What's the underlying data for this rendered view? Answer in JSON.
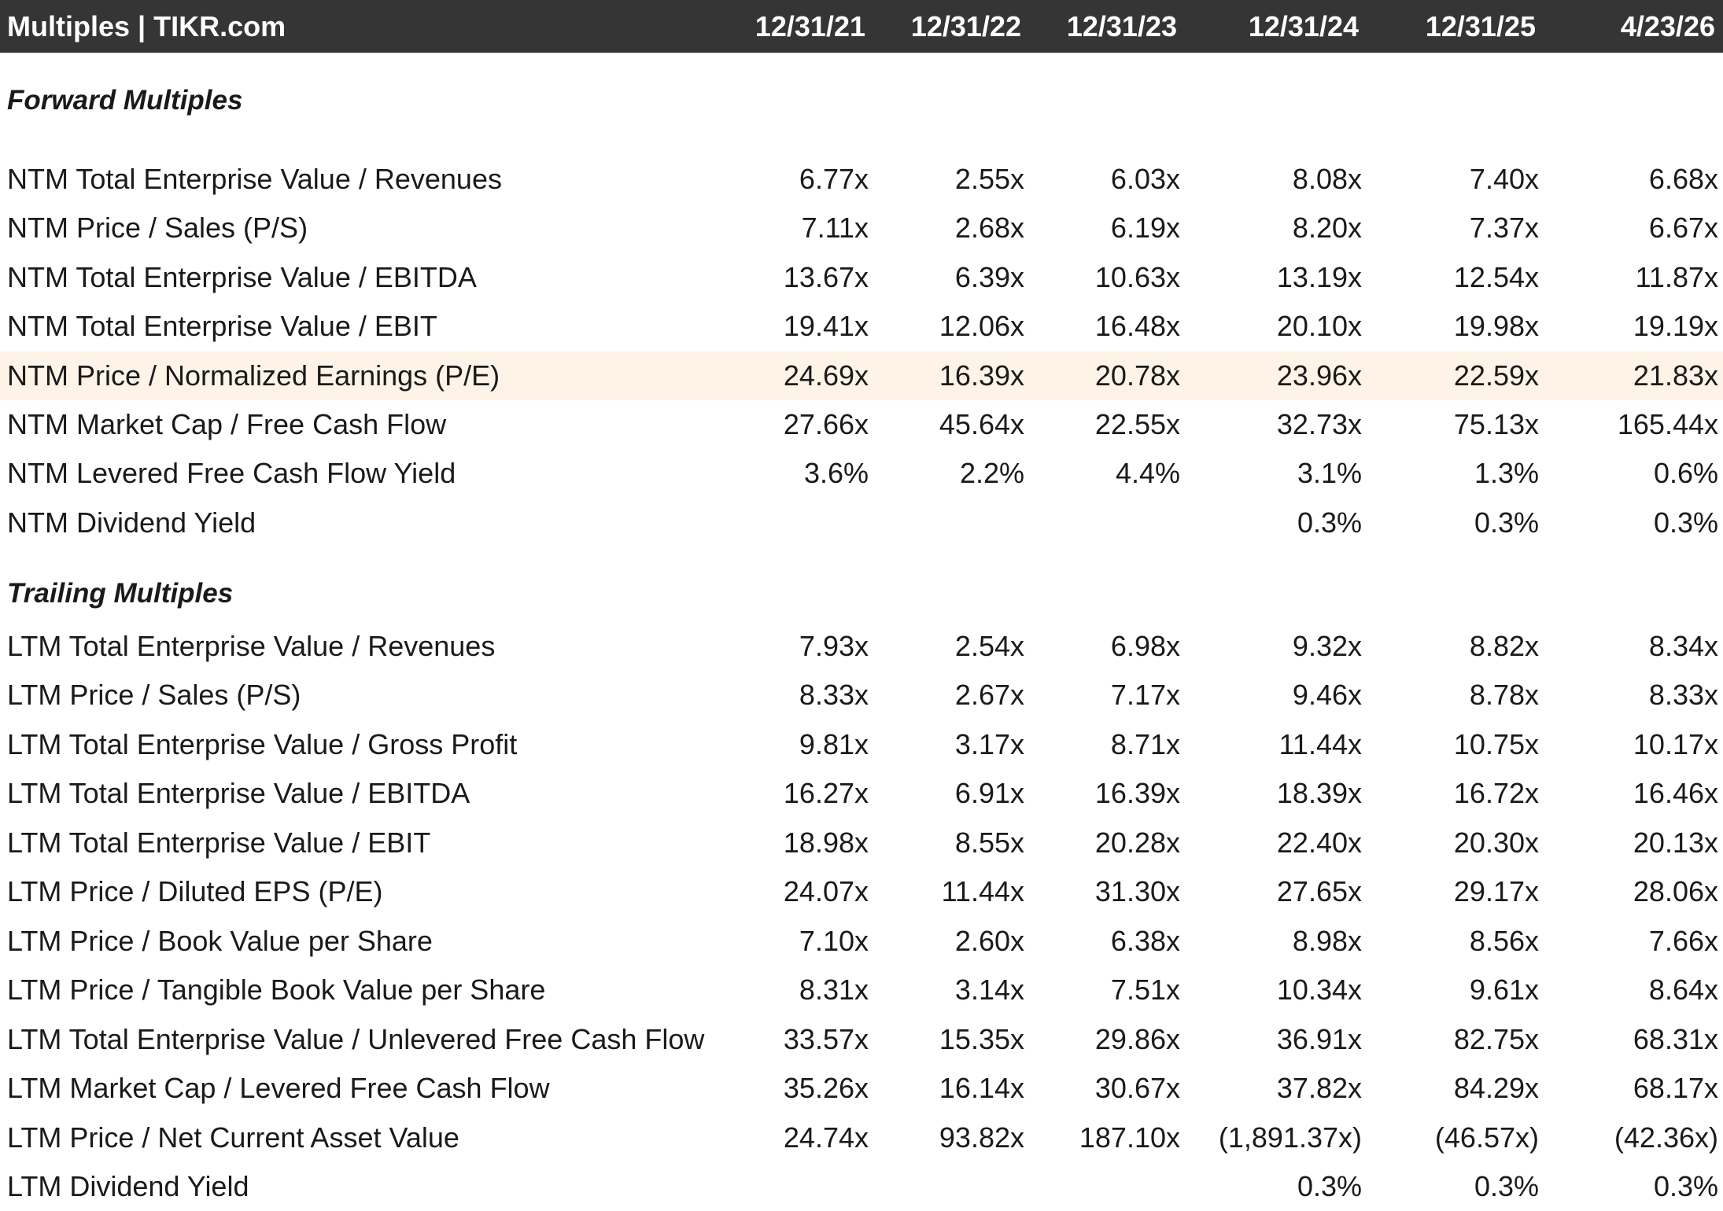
{
  "header": {
    "title": "Multiples | TIKR.com",
    "columns": [
      "12/31/21",
      "12/31/22",
      "12/31/23",
      "12/31/24",
      "12/31/25",
      "4/23/26"
    ]
  },
  "forward": {
    "title": "Forward Multiples",
    "rows": [
      {
        "label": "NTM Total Enterprise Value / Revenues",
        "values": [
          "6.77x",
          "2.55x",
          "6.03x",
          "8.08x",
          "7.40x",
          "6.68x"
        ]
      },
      {
        "label": "NTM Price / Sales (P/S)",
        "values": [
          "7.11x",
          "2.68x",
          "6.19x",
          "8.20x",
          "7.37x",
          "6.67x"
        ]
      },
      {
        "label": "NTM Total Enterprise Value / EBITDA",
        "values": [
          "13.67x",
          "6.39x",
          "10.63x",
          "13.19x",
          "12.54x",
          "11.87x"
        ]
      },
      {
        "label": "NTM Total Enterprise Value / EBIT",
        "values": [
          "19.41x",
          "12.06x",
          "16.48x",
          "20.10x",
          "19.98x",
          "19.19x"
        ]
      },
      {
        "label": "NTM Price / Normalized Earnings (P/E)",
        "values": [
          "24.69x",
          "16.39x",
          "20.78x",
          "23.96x",
          "22.59x",
          "21.83x"
        ],
        "highlight": true
      },
      {
        "label": "NTM Market Cap / Free Cash Flow",
        "values": [
          "27.66x",
          "45.64x",
          "22.55x",
          "32.73x",
          "75.13x",
          "165.44x"
        ]
      },
      {
        "label": "NTM Levered Free Cash Flow Yield",
        "values": [
          "3.6%",
          "2.2%",
          "4.4%",
          "3.1%",
          "1.3%",
          "0.6%"
        ]
      },
      {
        "label": "NTM Dividend Yield",
        "values": [
          "",
          "",
          "",
          "0.3%",
          "0.3%",
          "0.3%"
        ]
      }
    ]
  },
  "trailing": {
    "title": "Trailing Multiples",
    "rows": [
      {
        "label": "LTM Total Enterprise Value / Revenues",
        "values": [
          "7.93x",
          "2.54x",
          "6.98x",
          "9.32x",
          "8.82x",
          "8.34x"
        ]
      },
      {
        "label": "LTM Price / Sales (P/S)",
        "values": [
          "8.33x",
          "2.67x",
          "7.17x",
          "9.46x",
          "8.78x",
          "8.33x"
        ]
      },
      {
        "label": "LTM Total Enterprise Value / Gross Profit",
        "values": [
          "9.81x",
          "3.17x",
          "8.71x",
          "11.44x",
          "10.75x",
          "10.17x"
        ]
      },
      {
        "label": "LTM Total Enterprise Value / EBITDA",
        "values": [
          "16.27x",
          "6.91x",
          "16.39x",
          "18.39x",
          "16.72x",
          "16.46x"
        ]
      },
      {
        "label": "LTM Total Enterprise Value / EBIT",
        "values": [
          "18.98x",
          "8.55x",
          "20.28x",
          "22.40x",
          "20.30x",
          "20.13x"
        ]
      },
      {
        "label": "LTM Price / Diluted EPS (P/E)",
        "values": [
          "24.07x",
          "11.44x",
          "31.30x",
          "27.65x",
          "29.17x",
          "28.06x"
        ]
      },
      {
        "label": "LTM Price / Book Value per Share",
        "values": [
          "7.10x",
          "2.60x",
          "6.38x",
          "8.98x",
          "8.56x",
          "7.66x"
        ]
      },
      {
        "label": "LTM Price / Tangible Book Value per Share",
        "values": [
          "8.31x",
          "3.14x",
          "7.51x",
          "10.34x",
          "9.61x",
          "8.64x"
        ]
      },
      {
        "label": "LTM Total Enterprise Value / Unlevered Free Cash Flow",
        "values": [
          "33.57x",
          "15.35x",
          "29.86x",
          "36.91x",
          "82.75x",
          "68.31x"
        ]
      },
      {
        "label": "LTM Market Cap / Levered Free Cash Flow",
        "values": [
          "35.26x",
          "16.14x",
          "30.67x",
          "37.82x",
          "84.29x",
          "68.17x"
        ]
      },
      {
        "label": "LTM Price / Net Current Asset Value",
        "values": [
          "24.74x",
          "93.82x",
          "187.10x",
          "(1,891.37x)",
          "(46.57x)",
          "(42.36x)"
        ]
      },
      {
        "label": "LTM Dividend Yield",
        "values": [
          "",
          "",
          "",
          "0.3%",
          "0.3%",
          "0.3%"
        ]
      }
    ]
  }
}
